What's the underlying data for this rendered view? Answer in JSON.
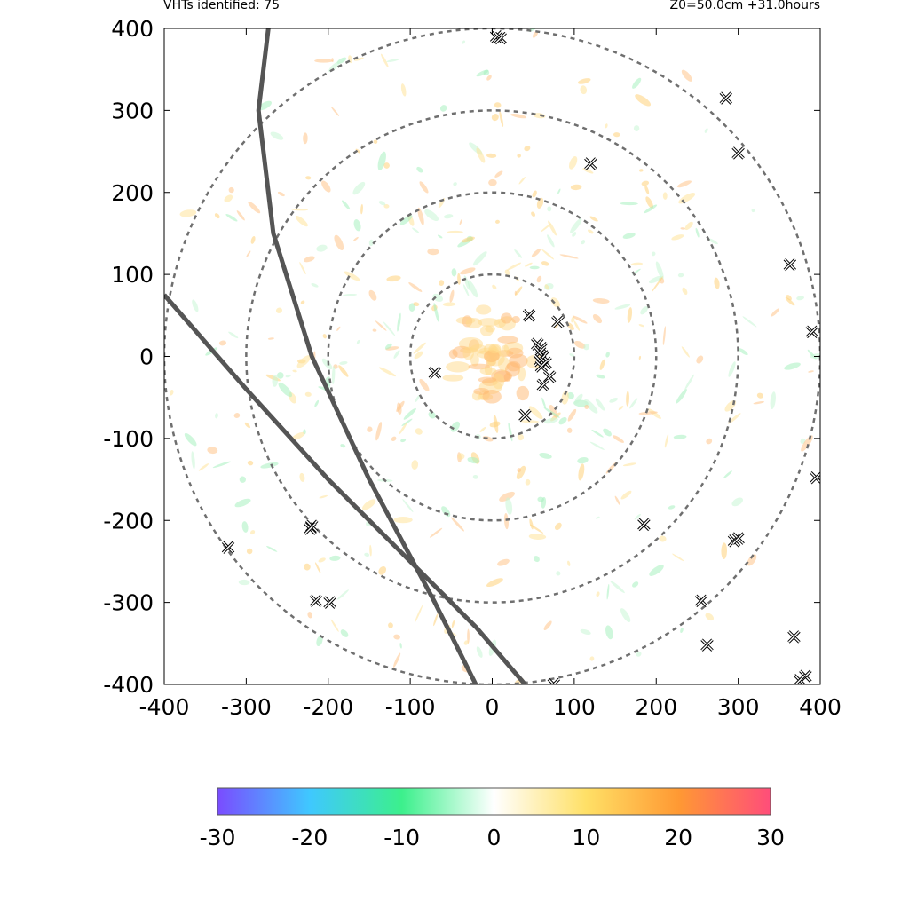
{
  "header": {
    "left_text": "VHTs identified: 75",
    "right_text": "Z0=50.0cm  +31.0hours"
  },
  "chart_data": {
    "type": "scatter",
    "xlim": [
      -400,
      400
    ],
    "ylim": [
      -400,
      400
    ],
    "xticks": [
      "-400",
      "-300",
      "-200",
      "-100",
      "0",
      "100",
      "200",
      "300",
      "400"
    ],
    "yticks": [
      "400",
      "300",
      "200",
      "100",
      "0",
      "-100",
      "-200",
      "-300",
      "-400"
    ],
    "grid": false,
    "range_rings_radius": [
      100,
      200,
      300,
      400
    ],
    "track_lines": [
      {
        "points": [
          [
            -273,
            400
          ],
          [
            -285,
            300
          ],
          [
            -267,
            150
          ],
          [
            -220,
            0
          ],
          [
            -150,
            -150
          ],
          [
            -70,
            -300
          ],
          [
            -20,
            -400
          ]
        ]
      },
      {
        "points": [
          [
            -400,
            75
          ],
          [
            -300,
            -40
          ],
          [
            -200,
            -150
          ],
          [
            -100,
            -250
          ],
          [
            -20,
            -330
          ],
          [
            40,
            -400
          ]
        ]
      }
    ],
    "vht_markers": {
      "points": [
        [
          5,
          390
        ],
        [
          10,
          388
        ],
        [
          120,
          235
        ],
        [
          285,
          315
        ],
        [
          300,
          248
        ],
        [
          363,
          112
        ],
        [
          390,
          30
        ],
        [
          395,
          -148
        ],
        [
          45,
          50
        ],
        [
          80,
          42
        ],
        [
          -70,
          -20
        ],
        [
          55,
          15
        ],
        [
          60,
          10
        ],
        [
          58,
          5
        ],
        [
          62,
          0
        ],
        [
          58,
          -5
        ],
        [
          65,
          -8
        ],
        [
          60,
          -12
        ],
        [
          70,
          -25
        ],
        [
          62,
          -35
        ],
        [
          40,
          -72
        ],
        [
          185,
          -205
        ],
        [
          295,
          -225
        ],
        [
          300,
          -222
        ],
        [
          255,
          -298
        ],
        [
          262,
          -352
        ],
        [
          -220,
          -207
        ],
        [
          -222,
          -210
        ],
        [
          -322,
          -233
        ],
        [
          -215,
          -298
        ],
        [
          -198,
          -300
        ],
        [
          368,
          -342
        ],
        [
          382,
          -390
        ],
        [
          375,
          -395
        ],
        [
          75,
          -400
        ]
      ]
    },
    "colorbar": {
      "ticks": [
        "-30",
        "-20",
        "-10",
        "0",
        "10",
        "20",
        "30"
      ],
      "range": [
        -30,
        30
      ],
      "colors": [
        "#7a4cff",
        "#3fc8ff",
        "#3cf08c",
        "#ffffff",
        "#ffe066",
        "#ff9933",
        "#ff4d7a"
      ]
    }
  }
}
